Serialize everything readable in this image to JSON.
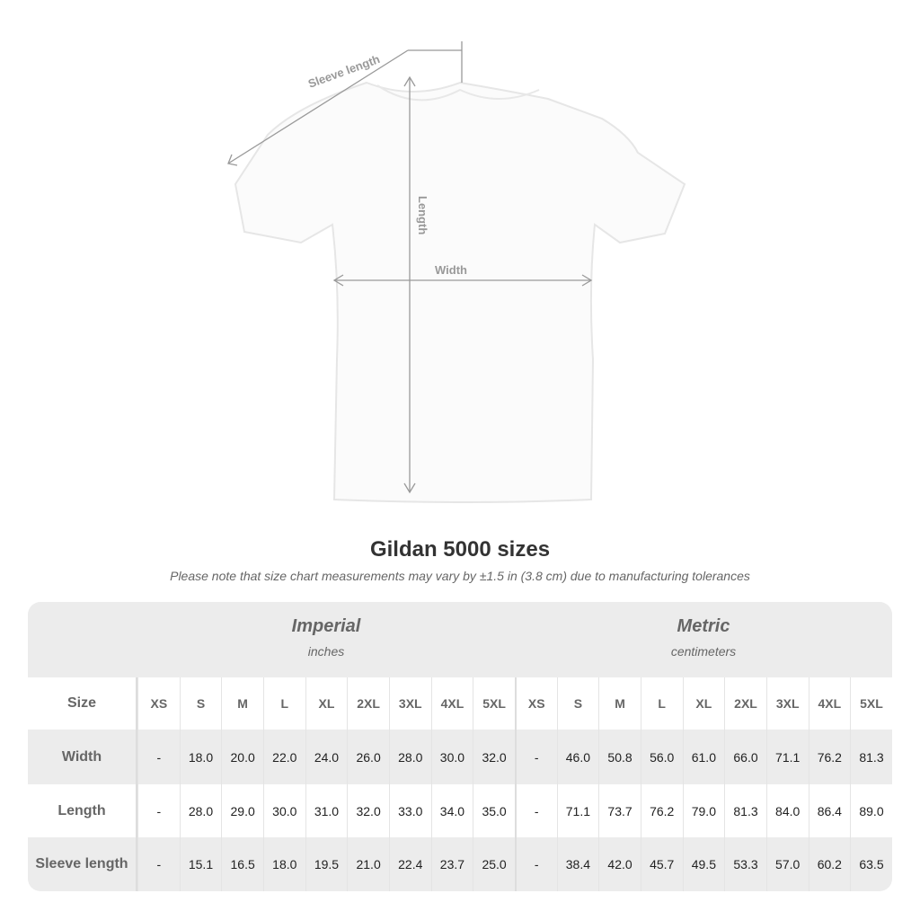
{
  "diagram": {
    "sleeve_label": "Sleeve length",
    "length_label": "Length",
    "width_label": "Width"
  },
  "title": "Gildan 5000 sizes",
  "note": "Please note that size chart measurements may vary by ±1.5 in (3.8 cm) due to manufacturing tolerances",
  "imperial": {
    "name": "Imperial",
    "unit": "inches"
  },
  "metric": {
    "name": "Metric",
    "unit": "centimeters"
  },
  "size_label": "Size",
  "sizes": [
    "XS",
    "S",
    "M",
    "L",
    "XL",
    "2XL",
    "3XL",
    "4XL",
    "5XL"
  ],
  "rows": [
    {
      "label": "Width",
      "imperial": [
        "-",
        "18.0",
        "20.0",
        "22.0",
        "24.0",
        "26.0",
        "28.0",
        "30.0",
        "32.0"
      ],
      "metric": [
        "-",
        "46.0",
        "50.8",
        "56.0",
        "61.0",
        "66.0",
        "71.1",
        "76.2",
        "81.3"
      ]
    },
    {
      "label": "Length",
      "imperial": [
        "-",
        "28.0",
        "29.0",
        "30.0",
        "31.0",
        "32.0",
        "33.0",
        "34.0",
        "35.0"
      ],
      "metric": [
        "-",
        "71.1",
        "73.7",
        "76.2",
        "79.0",
        "81.3",
        "84.0",
        "86.4",
        "89.0"
      ]
    },
    {
      "label": "Sleeve length",
      "imperial": [
        "-",
        "15.1",
        "16.5",
        "18.0",
        "19.5",
        "21.0",
        "22.4",
        "23.7",
        "25.0"
      ],
      "metric": [
        "-",
        "38.4",
        "42.0",
        "45.7",
        "49.5",
        "53.3",
        "57.0",
        "60.2",
        "63.5"
      ]
    }
  ]
}
